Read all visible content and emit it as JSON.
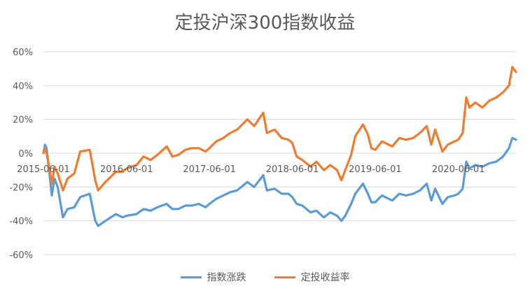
{
  "chart_data": {
    "type": "line",
    "title": "定投沪深300指数收益",
    "xlabel": "",
    "ylabel": "",
    "ylim": [
      -60,
      60
    ],
    "y_ticks": [
      "60%",
      "40%",
      "20%",
      "0%",
      "-20%",
      "-40%",
      "-60%"
    ],
    "x_tick_labels": [
      "2015-06-01",
      "2016-06-01",
      "2017-06-01",
      "2018-06-01",
      "2019-06-01",
      "2020-06-01"
    ],
    "x_range": [
      "2015-06-01",
      "2021-02-10"
    ],
    "grid": true,
    "legend_position": "bottom",
    "series": [
      {
        "name": "指数涨跌",
        "color": "#5B9BD5",
        "points": [
          [
            "2015-06-01",
            0
          ],
          [
            "2015-06-08",
            5
          ],
          [
            "2015-06-15",
            3
          ],
          [
            "2015-06-26",
            -10
          ],
          [
            "2015-07-08",
            -25
          ],
          [
            "2015-07-20",
            -15
          ],
          [
            "2015-08-03",
            -20
          ],
          [
            "2015-08-26",
            -38
          ],
          [
            "2015-09-15",
            -33
          ],
          [
            "2015-10-15",
            -32
          ],
          [
            "2015-11-10",
            -26
          ],
          [
            "2015-12-22",
            -24
          ],
          [
            "2016-01-15",
            -40
          ],
          [
            "2016-01-28",
            -43
          ],
          [
            "2016-02-29",
            -40
          ],
          [
            "2016-04-15",
            -36
          ],
          [
            "2016-05-15",
            -38
          ],
          [
            "2016-06-01",
            -37
          ],
          [
            "2016-07-15",
            -36
          ],
          [
            "2016-08-15",
            -33
          ],
          [
            "2016-09-15",
            -34
          ],
          [
            "2016-10-15",
            -32
          ],
          [
            "2016-11-25",
            -30
          ],
          [
            "2016-12-20",
            -33
          ],
          [
            "2017-01-15",
            -33
          ],
          [
            "2017-02-15",
            -31
          ],
          [
            "2017-03-15",
            -31
          ],
          [
            "2017-04-15",
            -30
          ],
          [
            "2017-05-15",
            -32
          ],
          [
            "2017-06-01",
            -30
          ],
          [
            "2017-07-01",
            -27
          ],
          [
            "2017-08-01",
            -25
          ],
          [
            "2017-09-01",
            -23
          ],
          [
            "2017-10-01",
            -22
          ],
          [
            "2017-11-15",
            -17
          ],
          [
            "2017-12-15",
            -20
          ],
          [
            "2018-01-24",
            -13
          ],
          [
            "2018-02-09",
            -22
          ],
          [
            "2018-03-15",
            -21
          ],
          [
            "2018-04-15",
            -24
          ],
          [
            "2018-05-15",
            -24
          ],
          [
            "2018-06-01",
            -26
          ],
          [
            "2018-06-20",
            -30
          ],
          [
            "2018-07-15",
            -31
          ],
          [
            "2018-08-20",
            -35
          ],
          [
            "2018-09-15",
            -34
          ],
          [
            "2018-10-18",
            -38
          ],
          [
            "2018-11-15",
            -35
          ],
          [
            "2018-12-15",
            -37
          ],
          [
            "2019-01-03",
            -40
          ],
          [
            "2019-01-20",
            -37
          ],
          [
            "2019-02-15",
            -30
          ],
          [
            "2019-03-05",
            -24
          ],
          [
            "2019-04-08",
            -18
          ],
          [
            "2019-04-30",
            -24
          ],
          [
            "2019-05-15",
            -29
          ],
          [
            "2019-06-01",
            -29
          ],
          [
            "2019-07-01",
            -25
          ],
          [
            "2019-08-15",
            -28
          ],
          [
            "2019-09-15",
            -24
          ],
          [
            "2019-10-15",
            -25
          ],
          [
            "2019-11-15",
            -24
          ],
          [
            "2019-12-15",
            -22
          ],
          [
            "2020-01-14",
            -18
          ],
          [
            "2020-02-03",
            -28
          ],
          [
            "2020-02-20",
            -21
          ],
          [
            "2020-03-23",
            -30
          ],
          [
            "2020-04-15",
            -26
          ],
          [
            "2020-05-15",
            -25
          ],
          [
            "2020-06-01",
            -24
          ],
          [
            "2020-06-20",
            -21
          ],
          [
            "2020-07-06",
            -5
          ],
          [
            "2020-07-20",
            -9
          ],
          [
            "2020-08-15",
            -7
          ],
          [
            "2020-09-15",
            -8
          ],
          [
            "2020-10-15",
            -6
          ],
          [
            "2020-11-15",
            -5
          ],
          [
            "2020-12-15",
            -2
          ],
          [
            "2021-01-10",
            3
          ],
          [
            "2021-01-25",
            9
          ],
          [
            "2021-02-10",
            8
          ]
        ]
      },
      {
        "name": "定投收益率",
        "color": "#ED7D31",
        "points": [
          [
            "2015-06-01",
            0
          ],
          [
            "2015-06-08",
            3
          ],
          [
            "2015-06-15",
            0
          ],
          [
            "2015-06-26",
            -8
          ],
          [
            "2015-07-08",
            -18
          ],
          [
            "2015-07-20",
            -8
          ],
          [
            "2015-08-03",
            -12
          ],
          [
            "2015-08-26",
            -22
          ],
          [
            "2015-09-15",
            -15
          ],
          [
            "2015-10-15",
            -12
          ],
          [
            "2015-11-10",
            1
          ],
          [
            "2015-12-22",
            2
          ],
          [
            "2016-01-15",
            -16
          ],
          [
            "2016-01-28",
            -22
          ],
          [
            "2016-02-29",
            -17
          ],
          [
            "2016-04-15",
            -11
          ],
          [
            "2016-05-15",
            -11
          ],
          [
            "2016-06-01",
            -9
          ],
          [
            "2016-07-15",
            -7
          ],
          [
            "2016-08-15",
            -2
          ],
          [
            "2016-09-15",
            -4
          ],
          [
            "2016-10-15",
            -1
          ],
          [
            "2016-11-25",
            4
          ],
          [
            "2016-12-20",
            -2
          ],
          [
            "2017-01-15",
            -1
          ],
          [
            "2017-02-15",
            2
          ],
          [
            "2017-03-15",
            3
          ],
          [
            "2017-04-15",
            3
          ],
          [
            "2017-05-15",
            1
          ],
          [
            "2017-06-01",
            3
          ],
          [
            "2017-07-01",
            7
          ],
          [
            "2017-08-01",
            9
          ],
          [
            "2017-09-01",
            12
          ],
          [
            "2017-10-01",
            14
          ],
          [
            "2017-11-15",
            20
          ],
          [
            "2017-12-15",
            16
          ],
          [
            "2018-01-24",
            24
          ],
          [
            "2018-02-09",
            12
          ],
          [
            "2018-03-15",
            14
          ],
          [
            "2018-04-15",
            9
          ],
          [
            "2018-05-15",
            8
          ],
          [
            "2018-06-01",
            6
          ],
          [
            "2018-06-20",
            -2
          ],
          [
            "2018-07-15",
            -4
          ],
          [
            "2018-08-20",
            -8
          ],
          [
            "2018-09-15",
            -5
          ],
          [
            "2018-10-18",
            -10
          ],
          [
            "2018-11-15",
            -7
          ],
          [
            "2018-12-15",
            -10
          ],
          [
            "2019-01-03",
            -16
          ],
          [
            "2019-01-20",
            -10
          ],
          [
            "2019-02-15",
            -1
          ],
          [
            "2019-03-05",
            10
          ],
          [
            "2019-04-08",
            17
          ],
          [
            "2019-04-30",
            11
          ],
          [
            "2019-05-15",
            3
          ],
          [
            "2019-06-01",
            2
          ],
          [
            "2019-07-01",
            7
          ],
          [
            "2019-08-15",
            4
          ],
          [
            "2019-09-15",
            9
          ],
          [
            "2019-10-15",
            8
          ],
          [
            "2019-11-15",
            9
          ],
          [
            "2019-12-15",
            12
          ],
          [
            "2020-01-14",
            16
          ],
          [
            "2020-02-03",
            5
          ],
          [
            "2020-02-20",
            14
          ],
          [
            "2020-03-23",
            1
          ],
          [
            "2020-04-15",
            5
          ],
          [
            "2020-05-15",
            7
          ],
          [
            "2020-06-01",
            8
          ],
          [
            "2020-06-20",
            12
          ],
          [
            "2020-07-06",
            33
          ],
          [
            "2020-07-20",
            27
          ],
          [
            "2020-08-15",
            30
          ],
          [
            "2020-09-15",
            27
          ],
          [
            "2020-10-15",
            31
          ],
          [
            "2020-11-15",
            33
          ],
          [
            "2020-12-15",
            36
          ],
          [
            "2021-01-10",
            40
          ],
          [
            "2021-01-25",
            51
          ],
          [
            "2021-02-10",
            48
          ]
        ]
      }
    ]
  }
}
